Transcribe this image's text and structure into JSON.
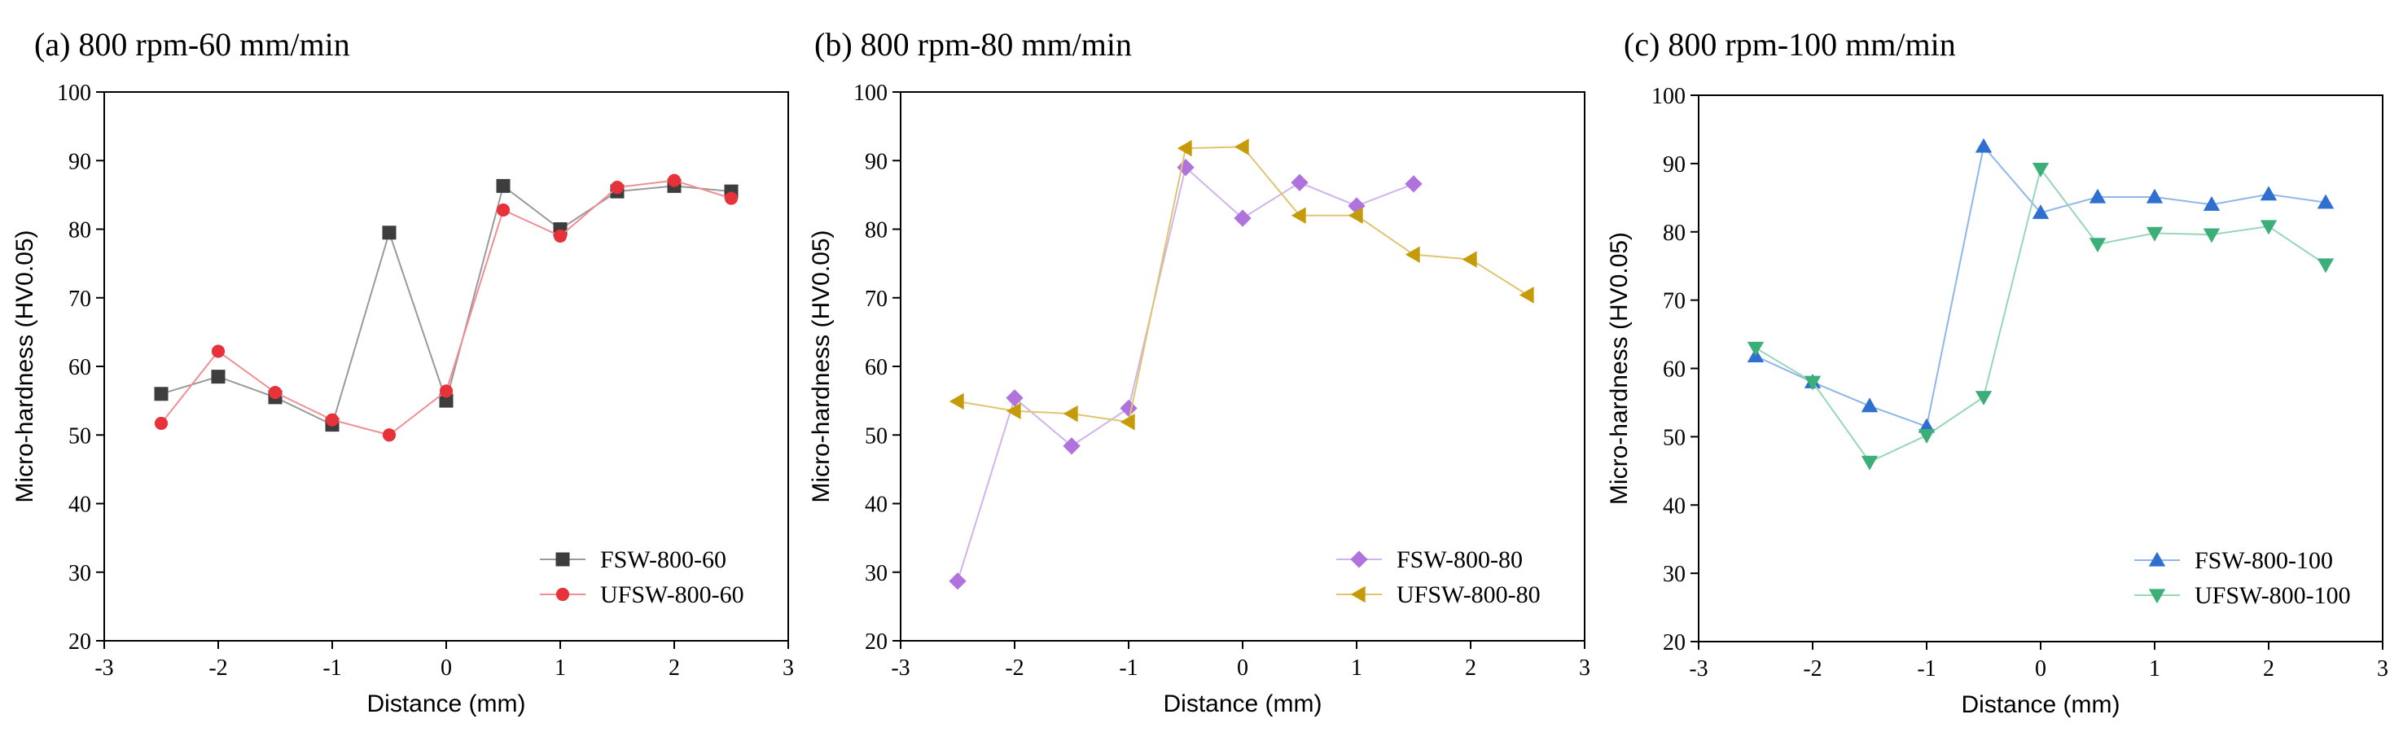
{
  "chart_data": [
    {
      "type": "line",
      "title": "(a) 800 rpm-60 mm/min",
      "xlabel": "Distance (mm)",
      "ylabel": "Micro-hardness (HV0.05)",
      "xlim": [
        -3,
        3
      ],
      "ylim": [
        20,
        100
      ],
      "xticks": [
        -3,
        -2,
        -1,
        0,
        1,
        2,
        3
      ],
      "yticks": [
        20,
        30,
        40,
        50,
        60,
        70,
        80,
        90,
        100
      ],
      "legend_position": "bottom-right",
      "series": [
        {
          "name": "FSW-800-60",
          "marker": "square",
          "color": "#3d3d3d",
          "line_color": "#9a9a9a",
          "x": [
            -2.5,
            -2,
            -1.5,
            -1,
            -0.5,
            0,
            0.5,
            1,
            1.5,
            2,
            2.5
          ],
          "y": [
            56,
            58.5,
            55.5,
            51.5,
            79.5,
            55,
            86.3,
            80,
            85.5,
            86.3,
            85.5
          ]
        },
        {
          "name": "UFSW-800-60",
          "marker": "circle",
          "color": "#e8323a",
          "line_color": "#ef8f94",
          "x": [
            -2.5,
            -2,
            -1.5,
            -1,
            -0.5,
            0,
            0.5,
            1,
            1.5,
            2,
            2.5
          ],
          "y": [
            51.7,
            62.2,
            56.2,
            52.2,
            50,
            56.4,
            82.8,
            79,
            86.1,
            87.1,
            84.5
          ]
        }
      ]
    },
    {
      "type": "line",
      "title": "(b) 800 rpm-80 mm/min",
      "xlabel": "Distance (mm)",
      "ylabel": "Micro-hardness (HV0.05)",
      "xlim": [
        -3,
        3
      ],
      "ylim": [
        20,
        100
      ],
      "xticks": [
        -3,
        -2,
        -1,
        0,
        1,
        2,
        3
      ],
      "yticks": [
        20,
        30,
        40,
        50,
        60,
        70,
        80,
        90,
        100
      ],
      "legend_position": "bottom-right",
      "series": [
        {
          "name": "FSW-800-80",
          "marker": "diamond",
          "color": "#b072dc",
          "line_color": "#d2b3eb",
          "x": [
            -2.5,
            -2,
            -1.5,
            -1,
            -0.5,
            0,
            0.5,
            1,
            1.5
          ],
          "y": [
            28.7,
            55.4,
            48.4,
            53.9,
            89,
            81.6,
            86.8,
            83.4,
            86.6
          ]
        },
        {
          "name": "UFSW-800-80",
          "marker": "triangle-left",
          "color": "#c69b0a",
          "line_color": "#e0c570",
          "x": [
            -2.5,
            -2,
            -1.5,
            -1,
            -0.5,
            0,
            0.5,
            1,
            1.5,
            2,
            2.5
          ],
          "y": [
            54.9,
            53.5,
            53.1,
            51.9,
            91.8,
            92,
            82,
            82,
            76.3,
            75.6,
            70.4
          ]
        }
      ]
    },
    {
      "type": "line",
      "title": "(c) 800 rpm-100 mm/min",
      "xlabel": "Distance (mm)",
      "ylabel": "Micro-hardness (HV0.05)",
      "xlim": [
        -3,
        3
      ],
      "ylim": [
        20,
        100
      ],
      "xticks": [
        -3,
        -2,
        -1,
        0,
        1,
        2,
        3
      ],
      "yticks": [
        20,
        30,
        40,
        50,
        60,
        70,
        80,
        90,
        100
      ],
      "legend_position": "bottom-right",
      "series": [
        {
          "name": "FSW-800-100",
          "marker": "triangle-up",
          "color": "#2f6fcf",
          "line_color": "#8fb6ea",
          "x": [
            -2.5,
            -2,
            -1.5,
            -1,
            -0.5,
            0,
            0.5,
            1,
            1.5,
            2,
            2.5
          ],
          "y": [
            61.8,
            58,
            54.5,
            51.5,
            92.5,
            82.8,
            85.1,
            85.1,
            84,
            85.5,
            84.3
          ]
        },
        {
          "name": "UFSW-800-100",
          "marker": "triangle-down",
          "color": "#3caf78",
          "line_color": "#97d7b6",
          "x": [
            -2.5,
            -2,
            -1.5,
            -1,
            -0.5,
            0,
            0.5,
            1,
            1.5,
            2,
            2.5
          ],
          "y": [
            63,
            58,
            46.3,
            50.2,
            55.8,
            89.2,
            78.2,
            79.8,
            79.6,
            80.8,
            75.2
          ]
        }
      ]
    }
  ]
}
